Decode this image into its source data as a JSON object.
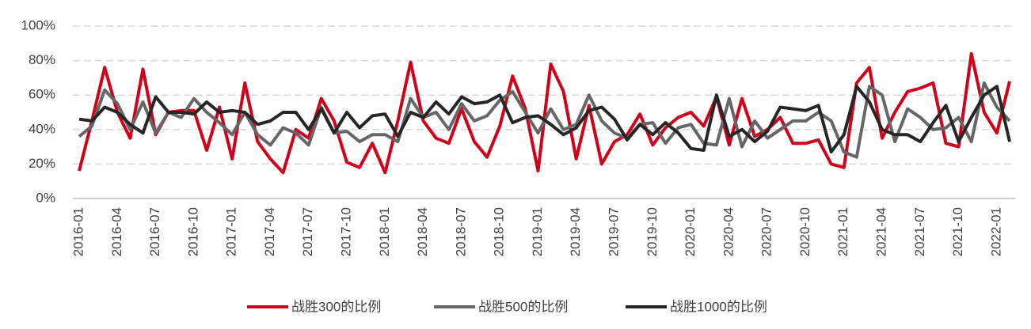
{
  "chart_data": {
    "type": "line",
    "categories": [
      "2016-01",
      null,
      null,
      "2016-04",
      null,
      null,
      "2016-07",
      null,
      null,
      "2016-10",
      null,
      null,
      "2017-01",
      null,
      null,
      "2017-04",
      null,
      null,
      "2017-07",
      null,
      null,
      "2017-10",
      null,
      null,
      "2018-01",
      null,
      null,
      "2018-04",
      null,
      null,
      "2018-07",
      null,
      null,
      "2018-10",
      null,
      null,
      "2019-01",
      null,
      null,
      "2019-04",
      null,
      null,
      "2019-07",
      null,
      null,
      "2019-10",
      null,
      null,
      "2020-01",
      null,
      null,
      "2020-04",
      null,
      null,
      "2020-07",
      null,
      null,
      "2020-10",
      null,
      null,
      "2021-01",
      null,
      null,
      "2021-04",
      null,
      null,
      "2021-07",
      null,
      null,
      "2021-10",
      null,
      null,
      "2022-01",
      null
    ],
    "series": [
      {
        "name": "战胜300的比例",
        "color": "#d0021b",
        "values": [
          16,
          45,
          76,
          50,
          35,
          75,
          37,
          50,
          51,
          51,
          28,
          53,
          23,
          67,
          33,
          23,
          15,
          40,
          35,
          58,
          45,
          21,
          18,
          32,
          15,
          45,
          79,
          45,
          35,
          32,
          52,
          33,
          24,
          42,
          71,
          52,
          16,
          78,
          62,
          23,
          54,
          20,
          33,
          37,
          49,
          31,
          41,
          47,
          50,
          42,
          59,
          31,
          58,
          36,
          40,
          47,
          32,
          32,
          34,
          20,
          18,
          67,
          76,
          35,
          50,
          62,
          64,
          67,
          32,
          30,
          84,
          50,
          38,
          68
        ]
      },
      {
        "name": "战胜500的比例",
        "color": "#666666",
        "values": [
          36,
          42,
          63,
          55,
          40,
          56,
          38,
          50,
          47,
          58,
          50,
          44,
          37,
          50,
          37,
          31,
          41,
          38,
          31,
          53,
          38,
          39,
          33,
          37,
          37,
          33,
          58,
          47,
          50,
          40,
          55,
          45,
          48,
          57,
          62,
          50,
          38,
          52,
          40,
          43,
          60,
          45,
          38,
          35,
          43,
          44,
          32,
          41,
          43,
          32,
          31,
          58,
          30,
          45,
          35,
          40,
          45,
          45,
          50,
          45,
          27,
          24,
          65,
          60,
          33,
          52,
          47,
          40,
          41,
          47,
          33,
          67,
          53,
          45
        ]
      },
      {
        "name": "战胜1000的比例",
        "color": "#262626",
        "values": [
          46,
          45,
          53,
          50,
          43,
          38,
          59,
          50,
          50,
          49,
          56,
          50,
          51,
          50,
          43,
          45,
          50,
          50,
          40,
          52,
          38,
          50,
          41,
          48,
          49,
          36,
          50,
          47,
          56,
          49,
          59,
          55,
          56,
          60,
          44,
          47,
          48,
          43,
          37,
          41,
          51,
          53,
          46,
          34,
          43,
          37,
          44,
          38,
          29,
          28,
          60,
          36,
          40,
          33,
          39,
          53,
          52,
          51,
          54,
          27,
          37,
          65,
          56,
          40,
          37,
          37,
          33,
          44,
          54,
          33,
          47,
          60,
          65,
          33
        ]
      }
    ],
    "ylim": [
      0,
      100
    ],
    "yticks": [
      {
        "value": 0,
        "label": "0%"
      },
      {
        "value": 20,
        "label": "20%"
      },
      {
        "value": 40,
        "label": "40%"
      },
      {
        "value": 60,
        "label": "60%"
      },
      {
        "value": 80,
        "label": "80%"
      },
      {
        "value": 100,
        "label": "100%"
      }
    ],
    "grid": true
  }
}
